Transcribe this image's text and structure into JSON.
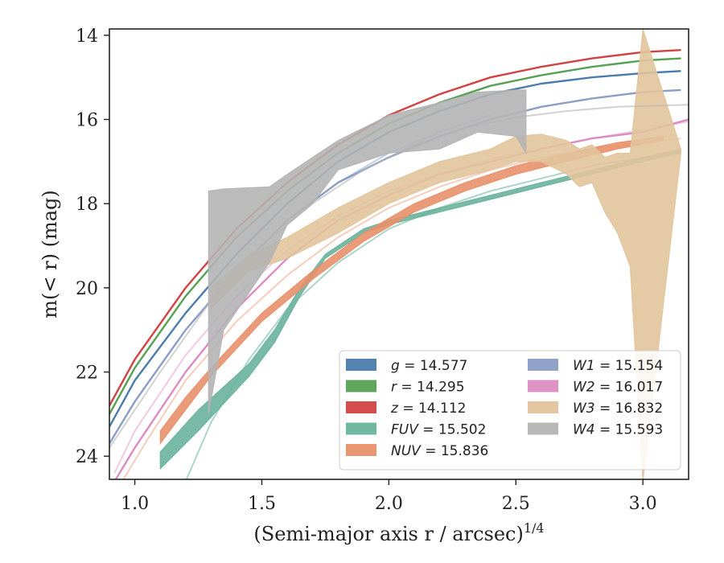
{
  "chart_data": {
    "type": "line",
    "xlabel": "(Semi-major axis r / arcsec)^1/4",
    "ylabel": "m(< r) (mag)",
    "xlim": [
      0.9,
      3.18
    ],
    "ylim": [
      24.55,
      13.85
    ],
    "y_inverted": true,
    "xticks": [
      1.0,
      1.5,
      2.0,
      2.5,
      3.0
    ],
    "xtick_labels": [
      "1.0",
      "1.5",
      "2.0",
      "2.5",
      "3.0"
    ],
    "yticks": [
      14,
      16,
      18,
      20,
      22,
      24
    ],
    "ytick_labels": [
      "14",
      "16",
      "18",
      "20",
      "22",
      "24"
    ],
    "grid": false,
    "legend_position": "lower-right",
    "legend_columns": 2,
    "series": [
      {
        "name": "g",
        "total_mag": "14.577",
        "color": "#4c7cac",
        "kind": "line",
        "x": [
          0.9,
          1.0,
          1.2,
          1.4,
          1.6,
          1.8,
          2.0,
          2.2,
          2.4,
          2.6,
          2.8,
          3.0,
          3.15
        ],
        "y": [
          23.3,
          22.2,
          20.6,
          19.2,
          18.0,
          17.0,
          16.3,
          15.8,
          15.4,
          15.15,
          15.0,
          14.9,
          14.85
        ],
        "extra_lines": [
          {
            "x": [
              0.9,
              1.0,
              1.2,
              1.4,
              1.6,
              1.8,
              2.0,
              2.2,
              2.4
            ],
            "y": [
              23.7,
              22.7,
              21.0,
              19.6,
              18.4,
              17.5,
              16.8,
              16.3,
              15.9
            ],
            "opacity": 0.35
          }
        ]
      },
      {
        "name": "r",
        "total_mag": "14.295",
        "color": "#55a155",
        "kind": "line",
        "x": [
          0.9,
          1.0,
          1.2,
          1.4,
          1.6,
          1.8,
          2.0,
          2.2,
          2.4,
          2.6,
          2.8,
          3.0,
          3.15
        ],
        "y": [
          23.0,
          21.9,
          20.2,
          18.8,
          17.7,
          16.8,
          16.1,
          15.6,
          15.2,
          14.95,
          14.75,
          14.6,
          14.55
        ]
      },
      {
        "name": "z",
        "total_mag": "14.112",
        "color": "#d14343",
        "kind": "line",
        "x": [
          0.9,
          1.0,
          1.2,
          1.4,
          1.6,
          1.8,
          2.0,
          2.2,
          2.4,
          2.6,
          2.8,
          3.0,
          3.15
        ],
        "y": [
          22.8,
          21.7,
          20.0,
          18.6,
          17.5,
          16.6,
          15.9,
          15.4,
          15.0,
          14.75,
          14.55,
          14.4,
          14.35
        ]
      },
      {
        "name": "FUV",
        "total_mag": "15.502",
        "color": "#6ab39c",
        "kind": "band",
        "x": [
          1.1,
          1.25,
          1.45,
          1.55,
          1.65,
          1.75,
          1.9,
          2.0,
          2.2,
          2.4,
          2.6,
          2.8,
          3.0,
          3.15
        ],
        "y_low": [
          24.3,
          23.4,
          22.1,
          21.3,
          20.2,
          19.3,
          18.7,
          18.5,
          18.2,
          17.9,
          17.6,
          17.3,
          17.0,
          16.8
        ],
        "y_high": [
          23.9,
          22.9,
          21.8,
          21.0,
          20.0,
          19.2,
          18.6,
          18.4,
          18.1,
          17.8,
          17.5,
          17.2,
          16.9,
          16.7
        ],
        "extra_lines": [
          {
            "x": [
              1.2,
              1.3,
              1.45,
              1.6,
              1.8,
              2.0,
              2.2,
              2.4,
              2.6,
              2.8,
              3.0,
              3.15
            ],
            "y": [
              24.6,
              23.2,
              21.7,
              20.5,
              19.4,
              18.6,
              18.1,
              17.7,
              17.4,
              17.1,
              16.9,
              16.8
            ],
            "opacity": 0.55
          }
        ]
      },
      {
        "name": "NUV",
        "total_mag": "15.836",
        "color": "#e8906a",
        "kind": "band",
        "x": [
          1.1,
          1.2,
          1.3,
          1.5,
          1.7,
          1.9,
          2.1,
          2.3,
          2.5,
          2.7,
          2.9,
          3.08
        ],
        "y_low": [
          23.7,
          22.9,
          22.1,
          20.8,
          19.8,
          18.9,
          18.2,
          17.7,
          17.3,
          17.0,
          16.7,
          16.5
        ],
        "y_high": [
          23.4,
          22.6,
          21.9,
          20.6,
          19.6,
          18.7,
          18.0,
          17.5,
          17.1,
          16.8,
          16.55,
          16.4
        ],
        "extra_lines": [
          {
            "x": [
              0.95,
              1.05,
              1.2,
              1.4,
              1.6,
              1.8,
              2.0,
              2.2,
              2.4,
              2.6,
              2.8,
              3.0,
              3.15
            ],
            "y": [
              24.6,
              23.6,
              22.2,
              20.8,
              19.7,
              18.8,
              18.1,
              17.6,
              17.2,
              16.9,
              16.7,
              16.55,
              16.45
            ],
            "opacity": 0.45
          }
        ]
      },
      {
        "name": "W1",
        "total_mag": "15.154",
        "color": "#8c9ec6",
        "kind": "line",
        "x": [
          0.9,
          1.0,
          1.2,
          1.4,
          1.6,
          1.8,
          2.0,
          2.2,
          2.4,
          2.6,
          2.8,
          3.0,
          3.15
        ],
        "y": [
          23.7,
          22.7,
          21.0,
          19.6,
          18.4,
          17.5,
          16.9,
          16.4,
          16.0,
          15.7,
          15.5,
          15.35,
          15.3
        ]
      },
      {
        "name": "W2",
        "total_mag": "16.017",
        "color": "#dc8cc2",
        "kind": "line",
        "x": [
          0.9,
          1.0,
          1.2,
          1.4,
          1.6,
          1.8,
          2.0,
          2.2,
          2.4,
          2.6,
          2.8,
          3.0,
          3.18
        ],
        "y": [
          24.8,
          23.8,
          22.0,
          20.5,
          19.3,
          18.4,
          17.8,
          17.3,
          17.0,
          16.7,
          16.45,
          16.3,
          16.0
        ],
        "extra_lines": [
          {
            "x": [
              0.92,
              1.0,
              1.2,
              1.4,
              1.6,
              1.8,
              2.0,
              2.2,
              2.4,
              2.6,
              2.8,
              3.0,
              3.18
            ],
            "y": [
              24.4,
              23.4,
              21.6,
              20.2,
              19.1,
              18.3,
              17.7,
              17.3,
              16.95,
              16.7,
              16.45,
              16.25,
              16.05
            ],
            "opacity": 0.45
          }
        ]
      },
      {
        "name": "W3",
        "total_mag": "16.832",
        "color": "#e2c49c",
        "kind": "band",
        "x": [
          1.3,
          1.45,
          1.6,
          1.8,
          2.0,
          2.2,
          2.4,
          2.5,
          2.6,
          2.7,
          2.75,
          2.8,
          2.85,
          2.9,
          2.95,
          3.0,
          3.15
        ],
        "y_low": [
          20.5,
          19.6,
          19.3,
          18.7,
          18.0,
          17.5,
          17.2,
          17.0,
          17.0,
          17.3,
          17.6,
          17.5,
          18.2,
          18.7,
          19.5,
          24.6,
          16.8
        ],
        "y_high": [
          20.0,
          19.2,
          18.8,
          18.1,
          17.5,
          17.0,
          16.7,
          16.4,
          16.35,
          16.5,
          16.7,
          16.6,
          16.9,
          16.8,
          16.8,
          13.85,
          16.7
        ]
      },
      {
        "name": "W4",
        "total_mag": "15.593",
        "color": "#b4b4b4",
        "kind": "band",
        "x": [
          1.29,
          1.35,
          1.53,
          1.6,
          1.7,
          1.8,
          2.0,
          2.2,
          2.35,
          2.5,
          2.54
        ],
        "y_low": [
          23.0,
          21.0,
          19.4,
          18.5,
          18.0,
          17.2,
          16.8,
          16.7,
          16.3,
          16.4,
          16.8
        ],
        "y_high": [
          17.7,
          17.65,
          17.6,
          17.3,
          16.9,
          16.5,
          15.9,
          15.6,
          15.35,
          15.3,
          15.3
        ],
        "extra_lines": [
          {
            "x": [
              0.9,
              1.1,
              1.3,
              1.5,
              1.7,
              1.9,
              2.1,
              2.3,
              2.5,
              2.7,
              2.9,
              3.18
            ],
            "y": [
              23.8,
              22.0,
              20.3,
              19.0,
              18.0,
              17.2,
              16.6,
              16.2,
              15.95,
              15.8,
              15.7,
              15.65
            ],
            "opacity": 0.6
          }
        ]
      }
    ]
  }
}
